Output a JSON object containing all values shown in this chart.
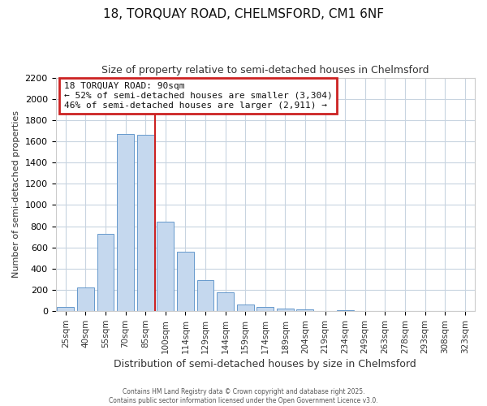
{
  "title1": "18, TORQUAY ROAD, CHELMSFORD, CM1 6NF",
  "title2": "Size of property relative to semi-detached houses in Chelmsford",
  "xlabel": "Distribution of semi-detached houses by size in Chelmsford",
  "ylabel": "Number of semi-detached properties",
  "categories": [
    "25sqm",
    "40sqm",
    "55sqm",
    "70sqm",
    "85sqm",
    "100sqm",
    "114sqm",
    "129sqm",
    "144sqm",
    "159sqm",
    "174sqm",
    "189sqm",
    "204sqm",
    "219sqm",
    "234sqm",
    "249sqm",
    "263sqm",
    "278sqm",
    "293sqm",
    "308sqm",
    "323sqm"
  ],
  "values": [
    40,
    225,
    730,
    1670,
    1660,
    845,
    560,
    295,
    180,
    65,
    38,
    25,
    18,
    0,
    12,
    0,
    0,
    0,
    0,
    0,
    0
  ],
  "bar_color": "#c5d8ee",
  "bar_edge_color": "#6699cc",
  "vline_x_index": 4.5,
  "annotation_title": "18 TORQUAY ROAD: 90sqm",
  "annotation_line1": "← 52% of semi-detached houses are smaller (3,304)",
  "annotation_line2": "46% of semi-detached houses are larger (2,911) →",
  "annotation_box_facecolor": "#ffffff",
  "annotation_box_edgecolor": "#cc2222",
  "vline_color": "#cc2222",
  "ylim": [
    0,
    2200
  ],
  "yticks": [
    0,
    200,
    400,
    600,
    800,
    1000,
    1200,
    1400,
    1600,
    1800,
    2000,
    2200
  ],
  "grid_color": "#c8d4e0",
  "bg_color": "#ffffff",
  "plot_bg_color": "#ffffff",
  "title1_fontsize": 11,
  "title2_fontsize": 9,
  "footer1": "Contains HM Land Registry data © Crown copyright and database right 2025.",
  "footer2": "Contains public sector information licensed under the Open Government Licence v3.0."
}
